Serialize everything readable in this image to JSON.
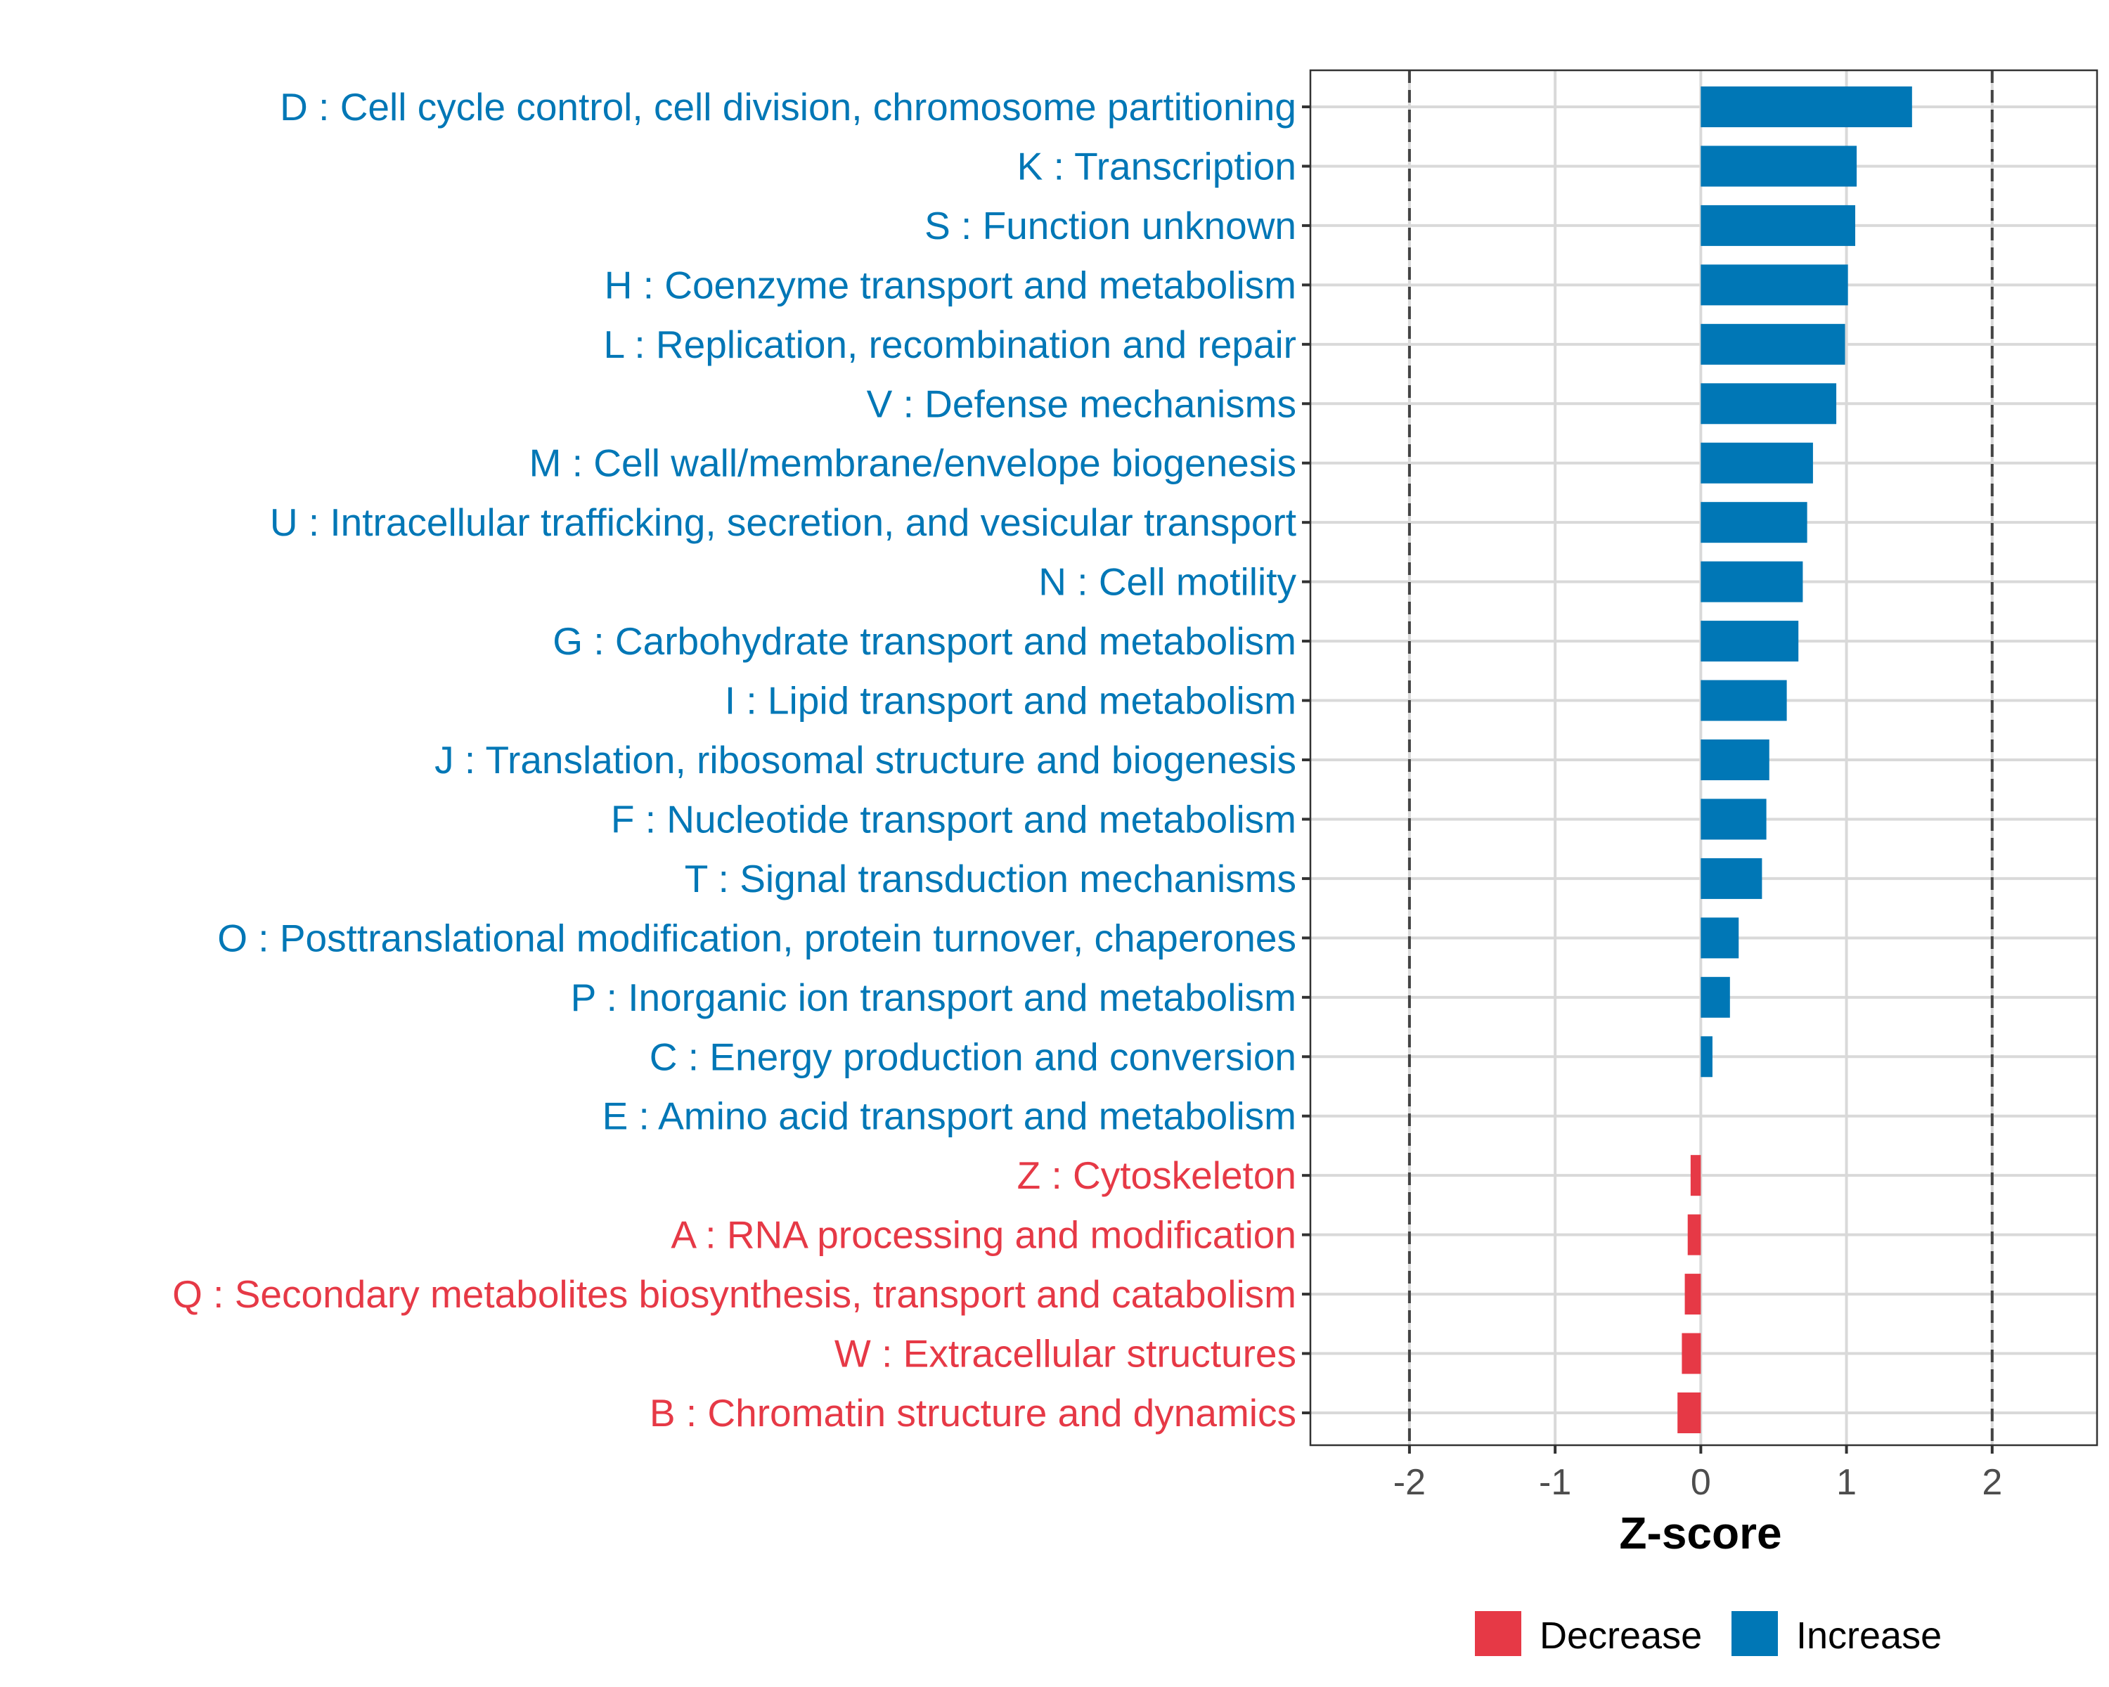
{
  "chart_data": {
    "type": "bar",
    "orientation": "horizontal",
    "xlabel": "Z-score",
    "xlim": [
      -2.68,
      2.72
    ],
    "xticks": [
      -2,
      -1,
      0,
      1,
      2
    ],
    "xtick_labels": [
      "-2",
      "-1",
      "0",
      "1",
      "2"
    ],
    "threshold_lines": [
      -2,
      2
    ],
    "grid": true,
    "legend_position": "bottom",
    "legend": [
      {
        "name": "Decrease",
        "color": "#E63946"
      },
      {
        "name": "Increase",
        "color": "#0077B6"
      }
    ],
    "colors": {
      "Increase": "#0077B6",
      "Decrease": "#E63946"
    },
    "categories": [
      "D : Cell cycle control, cell division, chromosome partitioning",
      "K : Transcription",
      "S : Function unknown",
      "H : Coenzyme transport and metabolism",
      "L : Replication, recombination and repair",
      "V : Defense mechanisms",
      "M : Cell wall/membrane/envelope biogenesis",
      "U : Intracellular trafficking, secretion, and vesicular transport",
      "N : Cell motility",
      "G : Carbohydrate transport and metabolism",
      "I : Lipid transport and metabolism",
      "J : Translation, ribosomal structure and biogenesis",
      "F : Nucleotide transport and metabolism",
      "T : Signal transduction mechanisms",
      "O : Posttranslational modification, protein turnover, chaperones",
      "P : Inorganic ion transport and metabolism",
      "C : Energy production and conversion",
      "E : Amino acid transport and metabolism",
      "Z : Cytoskeleton",
      "A : RNA processing and modification",
      "Q : Secondary metabolites biosynthesis, transport and catabolism",
      "W : Extracellular structures",
      "B : Chromatin structure and dynamics"
    ],
    "values": [
      1.45,
      1.07,
      1.06,
      1.01,
      0.99,
      0.93,
      0.77,
      0.73,
      0.7,
      0.67,
      0.59,
      0.47,
      0.45,
      0.42,
      0.26,
      0.2,
      0.08,
      0.0,
      -0.07,
      -0.09,
      -0.11,
      -0.13,
      -0.16
    ],
    "groups": [
      "Increase",
      "Increase",
      "Increase",
      "Increase",
      "Increase",
      "Increase",
      "Increase",
      "Increase",
      "Increase",
      "Increase",
      "Increase",
      "Increase",
      "Increase",
      "Increase",
      "Increase",
      "Increase",
      "Increase",
      "Increase",
      "Decrease",
      "Decrease",
      "Decrease",
      "Decrease",
      "Decrease"
    ]
  }
}
